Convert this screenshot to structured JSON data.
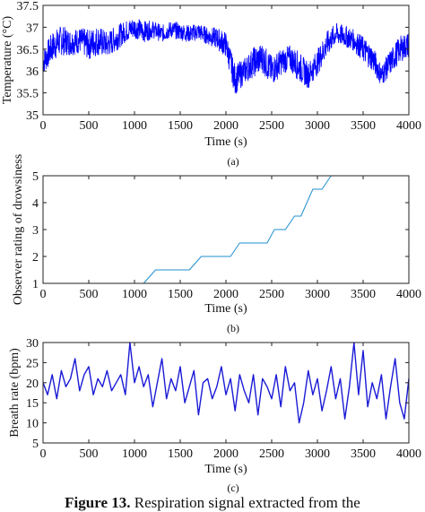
{
  "figure": {
    "caption_label": "Figure 13.",
    "caption_text": " Respiration signal extracted from the"
  },
  "chart_data": [
    {
      "type": "line",
      "panel_label": "(a)",
      "xlabel": "Time (s)",
      "ylabel": "Temperature (°C)",
      "xlim": [
        0,
        4000
      ],
      "ylim": [
        35,
        37.5
      ],
      "xticks": [
        0,
        500,
        1000,
        1500,
        2000,
        2500,
        3000,
        3500,
        4000
      ],
      "yticks": [
        35,
        35.5,
        36,
        36.5,
        37,
        37.5
      ],
      "grid": false,
      "color": "#0000ff",
      "series": [
        {
          "x": [
            0,
            100,
            200,
            300,
            400,
            500,
            600,
            700,
            800,
            900,
            1000,
            1100,
            1200,
            1300,
            1400,
            1500,
            1600,
            1700,
            1800,
            1900,
            2000,
            2100,
            2200,
            2300,
            2400,
            2500,
            2600,
            2700,
            2800,
            2900,
            3000,
            3100,
            3200,
            3300,
            3400,
            3500,
            3600,
            3700,
            3800,
            3900,
            4000
          ],
          "y": [
            36.2,
            36.55,
            36.7,
            36.65,
            36.7,
            36.6,
            36.7,
            36.6,
            36.75,
            36.9,
            37.0,
            36.9,
            36.95,
            36.85,
            36.95,
            36.9,
            36.85,
            36.9,
            36.8,
            36.75,
            36.6,
            35.8,
            36.0,
            36.2,
            36.3,
            36.0,
            36.2,
            36.3,
            36.1,
            35.9,
            36.2,
            36.6,
            36.85,
            36.8,
            36.7,
            36.5,
            36.3,
            35.9,
            36.2,
            36.5,
            36.6
          ],
          "band": [
            0.3,
            0.35,
            0.35,
            0.3,
            0.3,
            0.35,
            0.35,
            0.3,
            0.3,
            0.25,
            0.25,
            0.25,
            0.2,
            0.2,
            0.2,
            0.2,
            0.2,
            0.2,
            0.2,
            0.25,
            0.3,
            0.35,
            0.3,
            0.35,
            0.35,
            0.35,
            0.3,
            0.3,
            0.35,
            0.3,
            0.3,
            0.3,
            0.25,
            0.25,
            0.25,
            0.3,
            0.3,
            0.25,
            0.3,
            0.3,
            0.3
          ]
        }
      ]
    },
    {
      "type": "line",
      "panel_label": "(b)",
      "xlabel": "Time  (s)",
      "ylabel": "Observer rating of drowsiness",
      "xlim": [
        0,
        4000
      ],
      "ylim": [
        1,
        5
      ],
      "xticks": [
        0,
        500,
        1000,
        1500,
        2000,
        2500,
        3000,
        3500,
        4000
      ],
      "yticks": [
        1,
        2,
        3,
        4,
        5
      ],
      "grid": false,
      "color": "#1f8fd0",
      "series": [
        {
          "x": [
            0,
            1100,
            1230,
            1600,
            1730,
            2050,
            2150,
            2450,
            2530,
            2650,
            2750,
            2820,
            2950,
            3050,
            3150,
            3230,
            4000
          ],
          "y": [
            1,
            1,
            1.5,
            1.5,
            2,
            2,
            2.5,
            2.5,
            3,
            3,
            3.5,
            3.5,
            4.5,
            4.5,
            5,
            5,
            5
          ]
        }
      ]
    },
    {
      "type": "line",
      "panel_label": "(c)",
      "xlabel": "Time (s)",
      "ylabel": "Breath rate (bpm)",
      "xlim": [
        0,
        4000
      ],
      "ylim": [
        5,
        30
      ],
      "xticks": [
        0,
        500,
        1000,
        1500,
        2000,
        2500,
        3000,
        3500,
        4000
      ],
      "yticks": [
        5,
        10,
        15,
        20,
        25,
        30
      ],
      "grid": false,
      "color": "#1a1ad6",
      "series": [
        {
          "x": [
            0,
            50,
            100,
            150,
            200,
            250,
            300,
            350,
            400,
            450,
            500,
            550,
            600,
            650,
            700,
            750,
            800,
            850,
            900,
            950,
            1000,
            1050,
            1100,
            1150,
            1200,
            1250,
            1300,
            1350,
            1400,
            1450,
            1500,
            1550,
            1600,
            1650,
            1700,
            1750,
            1800,
            1850,
            1900,
            1950,
            2000,
            2050,
            2100,
            2150,
            2200,
            2250,
            2300,
            2350,
            2400,
            2450,
            2500,
            2550,
            2600,
            2650,
            2700,
            2750,
            2800,
            2850,
            2900,
            2950,
            3000,
            3050,
            3100,
            3150,
            3200,
            3250,
            3300,
            3350,
            3400,
            3450,
            3500,
            3550,
            3600,
            3650,
            3700,
            3750,
            3800,
            3850,
            3900,
            3950,
            4000
          ],
          "y": [
            20,
            17,
            22,
            16,
            23,
            19,
            21,
            26,
            18,
            22,
            24,
            17,
            21,
            19,
            23,
            18,
            20,
            22,
            17,
            30,
            20,
            24,
            19,
            22,
            14,
            20,
            26,
            16,
            21,
            18,
            24,
            15,
            19,
            23,
            12,
            20,
            21,
            16,
            19,
            24,
            17,
            21,
            13,
            22,
            18,
            15,
            22,
            12,
            21,
            19,
            16,
            22,
            14,
            24,
            18,
            20,
            10,
            15,
            23,
            17,
            21,
            13,
            18,
            24,
            16,
            21,
            11,
            19,
            30,
            17,
            28,
            14,
            20,
            16,
            22,
            11,
            19,
            26,
            15,
            11,
            21
          ]
        }
      ]
    }
  ]
}
